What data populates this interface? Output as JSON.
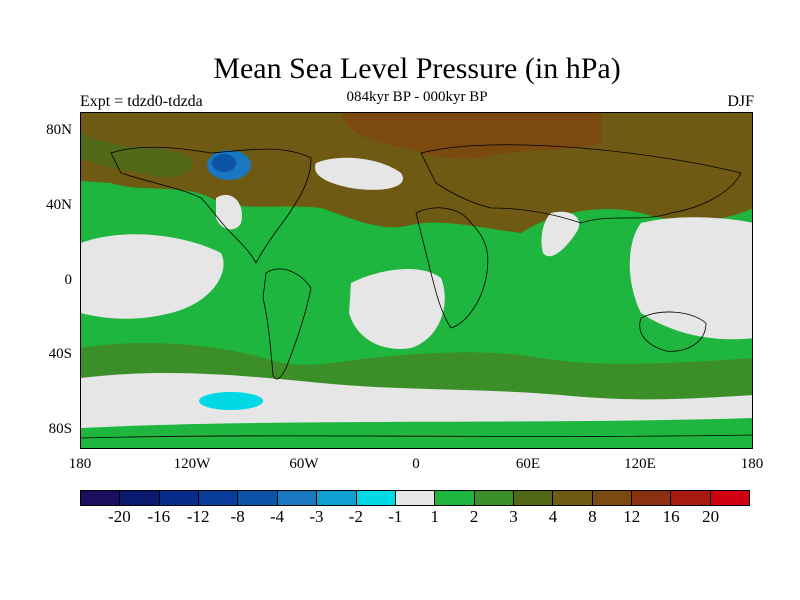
{
  "title": "Mean Sea Level Pressure (in hPa)",
  "subtitle": "084kyr BP - 000kyr BP",
  "experiment": "Expt = tdzd0-tdzda",
  "season": "DJF",
  "map": {
    "y_ticks": [
      "80N",
      "40N",
      "0",
      "40S",
      "80S"
    ],
    "x_ticks": [
      "180",
      "120W",
      "60W",
      "0",
      "60E",
      "120E",
      "180"
    ],
    "background_colors": {
      "ocean_land_base": "#1fb640",
      "low_diff": "#e6e6e6",
      "mid_pos": "#458020",
      "high_pos": "#7a5416",
      "very_high": "#8b4213",
      "neg_small": "#00d8e6",
      "neg_large": "#1c5fb0"
    }
  },
  "colorbar": {
    "colors": [
      "#1a0f5e",
      "#0a1a6e",
      "#062d8a",
      "#0a3c9c",
      "#0b53a6",
      "#1a78c0",
      "#0ea0d0",
      "#00d8e6",
      "#e6e6e6",
      "#1fb640",
      "#3c8f28",
      "#516817",
      "#6e5a12",
      "#7a4a10",
      "#8b3010",
      "#a61a10",
      "#d00010"
    ],
    "labels": [
      "-20",
      "-16",
      "-12",
      "-8",
      "-4",
      "-3",
      "-2",
      "-1",
      "1",
      "2",
      "3",
      "4",
      "8",
      "12",
      "16",
      "20"
    ]
  }
}
